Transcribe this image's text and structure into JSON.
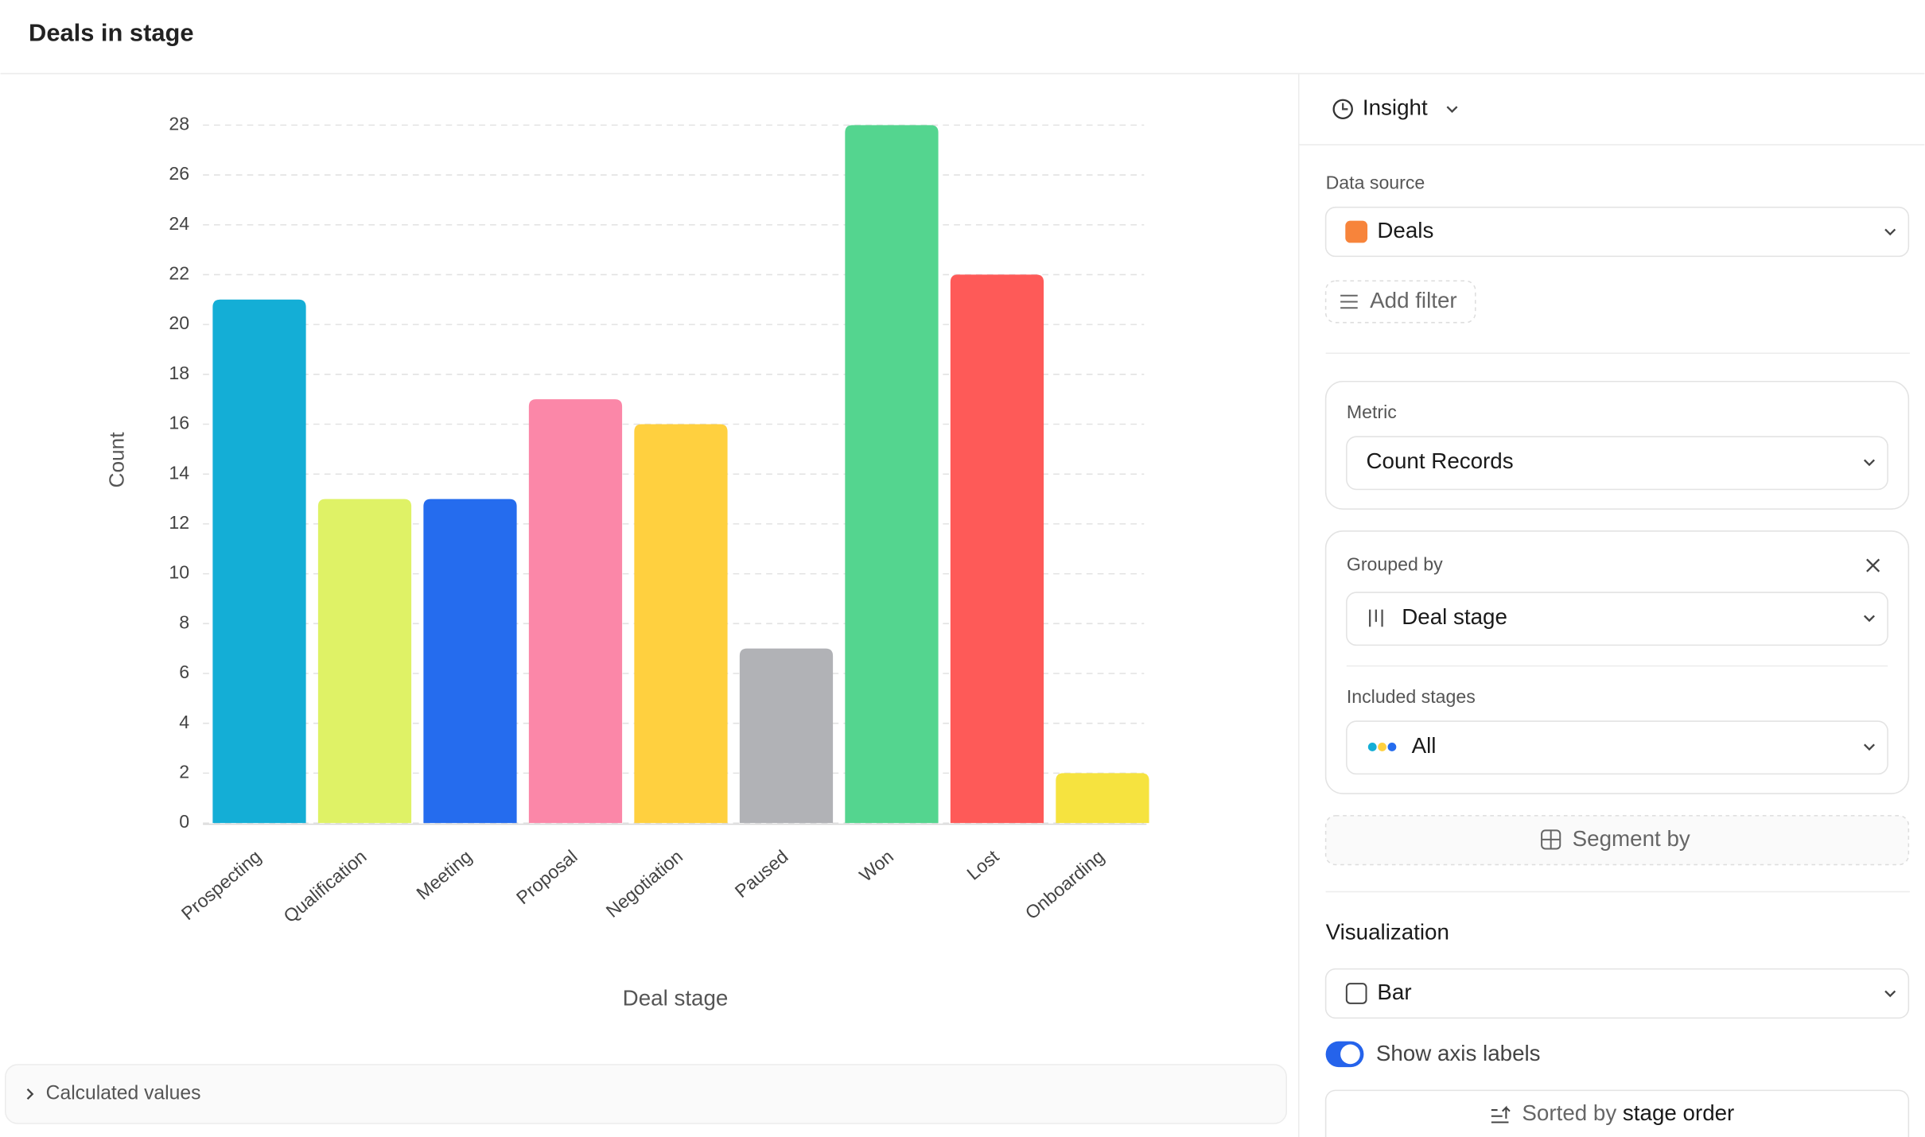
{
  "chart_data": {
    "type": "bar",
    "title": "Deals in stage",
    "x_label": "Deal stage",
    "y_label": "Count",
    "categories": [
      "Prospecting",
      "Qualification",
      "Meeting",
      "Proposal",
      "Negotiation",
      "Paused",
      "Won",
      "Lost",
      "Onboarding"
    ],
    "values": [
      21,
      13,
      13,
      17,
      16,
      7,
      28,
      22,
      2
    ],
    "colors": [
      "#14aed6",
      "#dff266",
      "#256cee",
      "#fb87a8",
      "#ffd03f",
      "#b1b2b6",
      "#54d58f",
      "#fe5a58",
      "#f6e33f"
    ],
    "ylim": [
      0,
      28
    ],
    "yticks": [
      0,
      2,
      4,
      6,
      8,
      10,
      12,
      14,
      16,
      18,
      20,
      22,
      24,
      26,
      28
    ],
    "grid": true
  },
  "panel": {
    "insight": "Insight",
    "data_source_label": "Data source",
    "data_source": "Deals",
    "add_filter": "Add filter",
    "metric_label": "Metric",
    "metric": "Count Records",
    "grouped_by_label": "Grouped by",
    "grouped_by": "Deal stage",
    "included_stages_label": "Included stages",
    "included_stages": "All",
    "segment_by": "Segment by",
    "visualization_label": "Visualization",
    "visualization": "Bar",
    "show_axis_labels": "Show axis labels",
    "sorted_by": "Sorted by",
    "sort_order": "stage order"
  },
  "calculated_values": "Calculated values"
}
